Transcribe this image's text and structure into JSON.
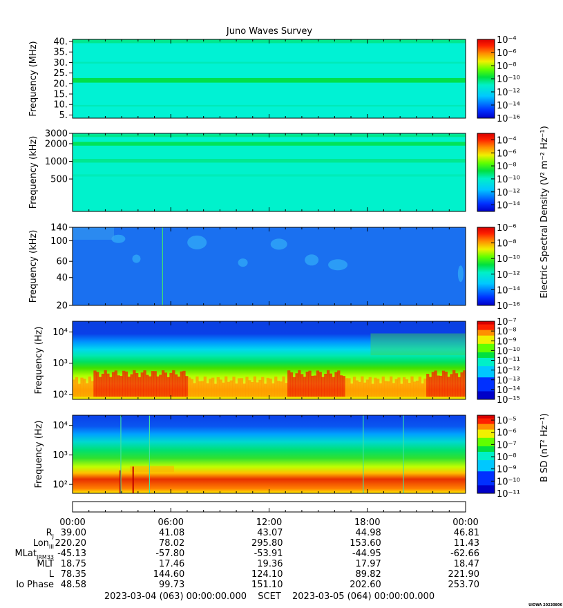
{
  "chart_data": {
    "type": "heatmap",
    "title": "Juno Waves Survey",
    "credit": "UIOWA 20230806",
    "time_range": {
      "start": "2023-03-04 (063) 00:00:00.000",
      "end": "2023-03-05 (064) 00:00:00.000",
      "scale_label": "SCET"
    },
    "time_ticks": [
      "00:00",
      "06:00",
      "12:00",
      "18:00",
      "00:00"
    ],
    "time_ticks_hours": [
      0,
      6,
      12,
      18,
      24
    ],
    "e_colorbar_label": "Electric Spectral Density (V² m⁻² Hz⁻¹)",
    "b_colorbar_label": "B SD (nT² Hz⁻¹)",
    "panels": [
      {
        "ylabel": "Frequency (MHz)",
        "yscale": "linear",
        "ylim": [
          3.5,
          41
        ],
        "yticks": [
          5,
          10,
          15,
          20,
          25,
          30,
          35,
          40
        ],
        "ytick_labels": [
          "5.",
          "10.",
          "15.",
          "20.",
          "25.",
          "30.",
          "35.",
          "40."
        ],
        "background": "#00f2d4",
        "bands": [
          {
            "from": 20.4,
            "to": 22.6,
            "color": "#00e04a"
          },
          {
            "from": 39.2,
            "to": 41.0,
            "color": "#00e88e"
          },
          {
            "from": 29.5,
            "to": 30.3,
            "color": "#00eab8"
          },
          {
            "from": 9.0,
            "to": 9.8,
            "color": "#00eab8"
          }
        ],
        "colorbar": {
          "type": "standard",
          "exponents": [
            -16,
            -4
          ],
          "labels": [
            -4,
            -6,
            -8,
            -10,
            -12,
            -14,
            -16
          ]
        }
      },
      {
        "ylabel": "Frequency (kHz)",
        "yscale": "log",
        "ylim": [
          140,
          3000
        ],
        "yticks": [
          500,
          1000,
          2000,
          3000
        ],
        "ytick_labels": [
          "500",
          "1000",
          "2000",
          "3000"
        ],
        "background": "#00f2cc",
        "bands": [
          {
            "from": 1850,
            "to": 2150,
            "color": "#00e35a"
          },
          {
            "from": 950,
            "to": 1100,
            "color": "#00e890"
          },
          {
            "from": 2600,
            "to": 2900,
            "color": "#00e68a"
          },
          {
            "from": 550,
            "to": 600,
            "color": "#00ecb8"
          }
        ],
        "colorbar": {
          "type": "standard",
          "exponents": [
            -15,
            -3
          ],
          "labels": [
            -4,
            -6,
            -8,
            -10,
            -12,
            -14
          ]
        }
      },
      {
        "ylabel": "Frequency (kHz)",
        "yscale": "log",
        "ylim": [
          20,
          140
        ],
        "yticks": [
          20,
          40,
          60,
          100,
          140
        ],
        "ytick_labels": [
          "20",
          "40",
          "60",
          "100",
          "140"
        ],
        "background": "#1a70f0",
        "bands": [],
        "colorbar": {
          "type": "standard",
          "exponents": [
            -16,
            -6
          ],
          "labels": [
            -6,
            -8,
            -10,
            -12,
            -14,
            -16
          ]
        }
      },
      {
        "ylabel": "Frequency (Hz)",
        "yscale": "log",
        "ylim": [
          70,
          22000
        ],
        "yticks": [
          100,
          1000,
          10000
        ],
        "ytick_labels": [
          "10²",
          "10³",
          "10⁴"
        ],
        "background": "#0a4df0",
        "bands": [],
        "colorbar": {
          "type": "stepped",
          "exponents": [
            -15,
            -7
          ],
          "labels": [
            -7,
            -8,
            -9,
            -10,
            -11,
            -12,
            -13,
            -14,
            -15
          ]
        }
      },
      {
        "ylabel": "Frequency (Hz)",
        "yscale": "log",
        "ylim": [
          50,
          22000
        ],
        "yticks": [
          100,
          1000,
          10000
        ],
        "ytick_labels": [
          "10²",
          "10³",
          "10⁴"
        ],
        "background": "#0a48e8",
        "bands": [],
        "colorbar": {
          "type": "stepped",
          "exponents": [
            -11,
            -4.6
          ],
          "labels": [
            -5,
            -6,
            -7,
            -8,
            -9,
            -10,
            -11
          ]
        }
      }
    ],
    "ephemeris": [
      {
        "label": "R",
        "sub": "J",
        "values": [
          "39.00",
          "41.08",
          "43.07",
          "44.98",
          "46.81"
        ]
      },
      {
        "label": "Lon",
        "sub": "III",
        "values": [
          "220.20",
          "78.02",
          "295.80",
          "153.60",
          "11.43"
        ]
      },
      {
        "label": "MLat",
        "sub": "JRM33",
        "values": [
          "-45.13",
          "-57.80",
          "-53.91",
          "-44.95",
          "-62.66"
        ]
      },
      {
        "label": "MLT",
        "sub": "",
        "values": [
          "18.75",
          "17.46",
          "19.36",
          "17.97",
          "18.47"
        ]
      },
      {
        "label": "L",
        "sub": "",
        "values": [
          "78.35",
          "144.60",
          "124.10",
          "89.82",
          "221.90"
        ]
      },
      {
        "label": "Io Phase",
        "sub": "",
        "values": [
          "48.58",
          "99.73",
          "151.10",
          "202.60",
          "253.70"
        ]
      }
    ]
  }
}
